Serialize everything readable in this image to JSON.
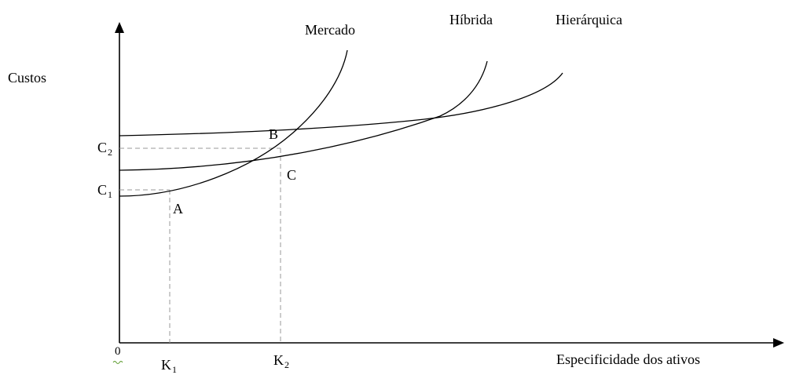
{
  "diagram": {
    "y_axis_label": "Custos",
    "x_axis_label": "Especificidade dos ativos",
    "origin_label": "0",
    "curves": {
      "mercado": "Mercado",
      "hibrida": "Híbrida",
      "hierarquica": "Hierárquica"
    },
    "points": {
      "a": "A",
      "b": "B",
      "c": "C"
    },
    "y_ticks": {
      "c1": {
        "base": "C",
        "sub": "1"
      },
      "c2": {
        "base": "C",
        "sub": "2"
      }
    },
    "x_ticks": {
      "k1": {
        "base": "K",
        "sub": "1"
      },
      "k2": {
        "base": "K",
        "sub": "2"
      }
    }
  }
}
